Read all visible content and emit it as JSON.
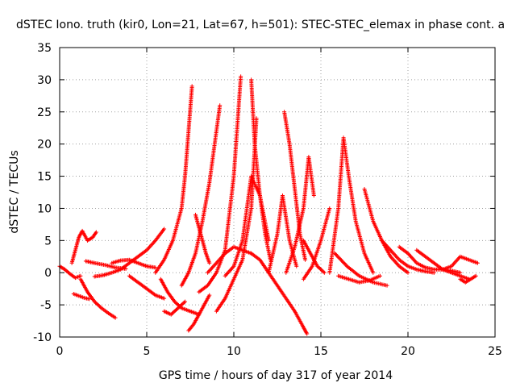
{
  "chart_data": {
    "type": "scatter",
    "title": "dSTEC Iono. truth (kir0, Lon=21, Lat=67, h=501): STEC-STEC_elemax in phase cont. a",
    "xlabel": "GPS time / hours of day 317 of year 2014",
    "ylabel": "dSTEC  / TECUs",
    "xlim": [
      0,
      25
    ],
    "ylim": [
      -10,
      35
    ],
    "x_ticks": [
      0,
      5,
      10,
      15,
      20,
      25
    ],
    "y_ticks": [
      -10,
      -5,
      0,
      5,
      10,
      15,
      20,
      25,
      30,
      35
    ],
    "x_tick_labels": [
      "0",
      "5",
      "10",
      "15",
      "20",
      "25"
    ],
    "y_tick_labels": [
      "-10",
      "-5",
      "0",
      "5",
      "10",
      "15",
      "20",
      "25",
      "30",
      "35"
    ],
    "grid": true,
    "marker": "+",
    "color": "#ff0000",
    "series": [
      {
        "x": [
          0.0,
          0.3,
          0.6,
          0.9,
          1.2
        ],
        "y": [
          1.0,
          0.5,
          -0.2,
          -0.8,
          -0.5
        ]
      },
      {
        "x": [
          0.7,
          0.9,
          1.1,
          1.3,
          1.6,
          1.9,
          2.1
        ],
        "y": [
          1.5,
          3.5,
          5.5,
          6.5,
          5.0,
          5.5,
          6.3
        ]
      },
      {
        "x": [
          0.8,
          1.1,
          1.4,
          1.7
        ],
        "y": [
          -3.3,
          -3.6,
          -3.9,
          -4.1
        ]
      },
      {
        "x": [
          1.2,
          1.6,
          2.0,
          2.4,
          2.8,
          3.2
        ],
        "y": [
          -1.0,
          -3.0,
          -4.5,
          -5.5,
          -6.3,
          -7.0
        ]
      },
      {
        "x": [
          1.5,
          2.0,
          2.6,
          3.2,
          3.8
        ],
        "y": [
          1.8,
          1.5,
          1.2,
          0.8,
          0.6
        ]
      },
      {
        "x": [
          2.0,
          2.5,
          3.0,
          3.5,
          4.0,
          4.5,
          5.0,
          5.5,
          6.0
        ],
        "y": [
          -0.6,
          -0.4,
          0.0,
          0.5,
          1.5,
          2.5,
          3.5,
          5.0,
          6.8
        ]
      },
      {
        "x": [
          3.0,
          3.5,
          4.0,
          4.5,
          5.0,
          5.5
        ],
        "y": [
          1.5,
          1.9,
          2.0,
          1.5,
          1.0,
          0.8
        ]
      },
      {
        "x": [
          4.0,
          4.5,
          5.0,
          5.5,
          6.0
        ],
        "y": [
          -0.5,
          -1.5,
          -2.5,
          -3.5,
          -4.0
        ]
      },
      {
        "x": [
          5.5,
          6.0,
          6.5,
          7.0,
          7.2,
          7.4,
          7.6
        ],
        "y": [
          0.0,
          2.0,
          5.0,
          10.0,
          15.0,
          22.0,
          29.0
        ]
      },
      {
        "x": [
          5.8,
          6.2,
          6.6,
          7.0,
          7.5,
          8.0
        ],
        "y": [
          -1.0,
          -3.0,
          -4.5,
          -5.5,
          -6.0,
          -6.5
        ]
      },
      {
        "x": [
          6.0,
          6.4,
          6.8,
          7.2
        ],
        "y": [
          -6.0,
          -6.5,
          -5.5,
          -4.5
        ]
      },
      {
        "x": [
          7.0,
          7.4,
          7.8,
          8.2,
          8.6,
          8.9,
          9.2
        ],
        "y": [
          -2.0,
          0.0,
          3.0,
          8.0,
          14.0,
          20.0,
          26.0
        ]
      },
      {
        "x": [
          7.4,
          7.7,
          8.0,
          8.3,
          8.6
        ],
        "y": [
          -9.0,
          -8.0,
          -6.5,
          -5.0,
          -3.5
        ]
      },
      {
        "x": [
          7.8,
          8.0,
          8.2,
          8.4,
          8.6
        ],
        "y": [
          9.0,
          7.0,
          5.0,
          3.0,
          1.5
        ]
      },
      {
        "x": [
          8.0,
          8.5,
          9.0,
          9.5,
          10.0,
          10.4
        ],
        "y": [
          -3.0,
          -2.0,
          0.0,
          3.5,
          15.0,
          30.5
        ]
      },
      {
        "x": [
          8.5,
          9.0,
          9.5,
          10.0,
          10.5,
          11.0
        ],
        "y": [
          0.0,
          1.5,
          3.0,
          4.0,
          3.5,
          3.0
        ]
      },
      {
        "x": [
          9.0,
          9.5,
          10.0,
          10.5,
          11.0,
          11.3
        ],
        "y": [
          -6.0,
          -4.0,
          -1.0,
          2.0,
          10.0,
          24.0
        ]
      },
      {
        "x": [
          9.5,
          10.0,
          10.5,
          11.0,
          11.5,
          12.0
        ],
        "y": [
          -0.5,
          1.0,
          5.0,
          15.0,
          12.0,
          5.0
        ]
      },
      {
        "x": [
          11.0,
          11.2,
          11.5,
          11.8,
          12.1
        ],
        "y": [
          30.0,
          20.0,
          12.0,
          6.0,
          2.0
        ]
      },
      {
        "x": [
          11.0,
          11.5,
          12.0,
          12.5,
          13.0,
          13.5,
          14.0,
          14.2
        ],
        "y": [
          3.0,
          2.0,
          0.0,
          -2.0,
          -4.0,
          -6.0,
          -8.5,
          -9.5
        ]
      },
      {
        "x": [
          12.0,
          12.5,
          12.8,
          13.2,
          13.6
        ],
        "y": [
          0.0,
          6.0,
          12.0,
          5.0,
          1.0
        ]
      },
      {
        "x": [
          12.9,
          13.2,
          13.5,
          13.8,
          14.1
        ],
        "y": [
          25.0,
          20.0,
          13.0,
          6.0,
          2.0
        ]
      },
      {
        "x": [
          13.0,
          13.5,
          14.0,
          14.3,
          14.6
        ],
        "y": [
          0.0,
          4.0,
          10.0,
          18.0,
          12.0
        ]
      },
      {
        "x": [
          14.0,
          14.5,
          15.0,
          15.5
        ],
        "y": [
          -1.0,
          1.0,
          5.0,
          10.0
        ]
      },
      {
        "x": [
          14.0,
          14.4,
          14.8,
          15.2
        ],
        "y": [
          5.0,
          3.0,
          1.0,
          0.0
        ]
      },
      {
        "x": [
          15.5,
          16.0,
          16.3,
          16.6,
          17.0,
          17.5,
          18.0
        ],
        "y": [
          0.0,
          10.0,
          21.0,
          15.0,
          8.0,
          3.0,
          0.0
        ]
      },
      {
        "x": [
          15.8,
          16.5,
          17.2,
          18.0,
          18.8
        ],
        "y": [
          3.0,
          1.0,
          -0.5,
          -1.5,
          -2.0
        ]
      },
      {
        "x": [
          16.0,
          16.6,
          17.2,
          17.8,
          18.4
        ],
        "y": [
          -0.5,
          -1.0,
          -1.5,
          -1.2,
          -0.5
        ]
      },
      {
        "x": [
          17.5,
          18.0,
          18.5,
          19.0,
          19.5,
          20.0
        ],
        "y": [
          13.0,
          8.0,
          5.0,
          2.5,
          1.0,
          0.0
        ]
      },
      {
        "x": [
          18.5,
          19.0,
          19.5,
          20.0,
          20.5,
          21.0,
          21.5
        ],
        "y": [
          5.0,
          3.5,
          2.0,
          1.0,
          0.5,
          0.2,
          0.0
        ]
      },
      {
        "x": [
          19.5,
          20.0,
          20.5,
          21.0,
          21.5,
          22.0,
          22.5,
          23.0
        ],
        "y": [
          4.0,
          3.0,
          1.5,
          0.8,
          0.5,
          0.5,
          0.3,
          0.0
        ]
      },
      {
        "x": [
          20.5,
          21.0,
          21.5,
          22.0,
          22.5,
          23.0,
          23.5
        ],
        "y": [
          3.5,
          2.5,
          1.5,
          0.5,
          0.0,
          -0.5,
          -1.0
        ]
      },
      {
        "x": [
          22.0,
          22.5,
          23.0,
          23.5,
          24.0
        ],
        "y": [
          0.5,
          1.0,
          2.5,
          2.0,
          1.5
        ]
      },
      {
        "x": [
          23.0,
          23.3,
          23.6,
          23.9
        ],
        "y": [
          -1.0,
          -1.5,
          -1.0,
          -0.5
        ]
      }
    ]
  }
}
